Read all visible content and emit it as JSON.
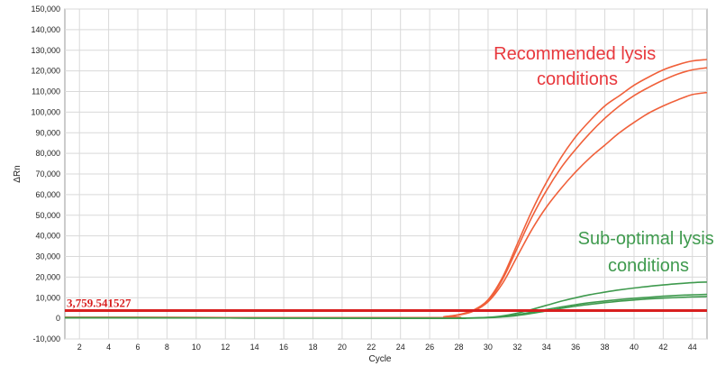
{
  "chart_data": {
    "type": "line",
    "xlabel": "Cycle",
    "ylabel": "ΔRn",
    "xlim": [
      1,
      45
    ],
    "ylim": [
      -10000,
      150000
    ],
    "x_ticks": [
      2,
      4,
      6,
      8,
      10,
      12,
      14,
      16,
      18,
      20,
      22,
      24,
      26,
      28,
      30,
      32,
      34,
      36,
      38,
      40,
      42,
      44
    ],
    "y_ticks": [
      -10000,
      0,
      10000,
      20000,
      30000,
      40000,
      50000,
      60000,
      70000,
      80000,
      90000,
      100000,
      110000,
      120000,
      130000,
      140000,
      150000
    ],
    "y_tick_labels": [
      "-10,000",
      "0",
      "10,000",
      "20,000",
      "30,000",
      "40,000",
      "50,000",
      "60,000",
      "70,000",
      "80,000",
      "90,000",
      "100,000",
      "110,000",
      "120,000",
      "130,000",
      "140,000",
      "150,000"
    ],
    "grid": true,
    "threshold": {
      "value": 3759.541527,
      "label": "3,759.541527",
      "color": "#d81f1f"
    },
    "colors": {
      "recommended": "#f0603a",
      "suboptimal": "#3f9a4e",
      "annot_red": "#e8383d",
      "annot_green": "#3f9a4e"
    },
    "series": [
      {
        "group": "recommended",
        "x": [
          1,
          26,
          27,
          28,
          29,
          30,
          31,
          32,
          33,
          34,
          35,
          36,
          37,
          38,
          39,
          40,
          41,
          42,
          43,
          44,
          45
        ],
        "y": [
          500,
          300,
          800,
          1800,
          4000,
          9000,
          20000,
          36000,
          52000,
          66000,
          78000,
          88000,
          96000,
          103000,
          108000,
          113000,
          117000,
          120500,
          123000,
          124800,
          125500
        ]
      },
      {
        "group": "recommended",
        "x": [
          1,
          26,
          27,
          28,
          29,
          30,
          31,
          32,
          33,
          34,
          35,
          36,
          37,
          38,
          39,
          40,
          41,
          42,
          43,
          44,
          45
        ],
        "y": [
          500,
          300,
          800,
          1700,
          3800,
          8500,
          19000,
          34000,
          49000,
          62000,
          73000,
          82000,
          90000,
          97000,
          103000,
          108000,
          112000,
          115500,
          118500,
          120500,
          121500
        ]
      },
      {
        "group": "recommended",
        "x": [
          1,
          26,
          27,
          28,
          29,
          30,
          31,
          32,
          33,
          34,
          35,
          36,
          37,
          38,
          39,
          40,
          41,
          42,
          43,
          44,
          45
        ],
        "y": [
          500,
          300,
          700,
          1600,
          3500,
          8000,
          17000,
          30000,
          43000,
          54000,
          63000,
          71000,
          78000,
          84000,
          90000,
          95000,
          99500,
          103000,
          106000,
          108500,
          109500
        ]
      },
      {
        "group": "suboptimal",
        "x": [
          1,
          26,
          28,
          30,
          31,
          32,
          33,
          34,
          35,
          36,
          37,
          38,
          39,
          40,
          41,
          42,
          43,
          44,
          45
        ],
        "y": [
          300,
          0,
          100,
          500,
          1200,
          2500,
          4300,
          6300,
          8300,
          10000,
          11500,
          12700,
          13800,
          14700,
          15500,
          16200,
          16800,
          17300,
          17600
        ]
      },
      {
        "group": "suboptimal",
        "x": [
          1,
          26,
          28,
          30,
          31,
          32,
          33,
          34,
          35,
          36,
          37,
          38,
          39,
          40,
          41,
          42,
          43,
          44,
          45
        ],
        "y": [
          300,
          0,
          80,
          400,
          900,
          1800,
          3000,
          4300,
          5500,
          6600,
          7600,
          8400,
          9100,
          9700,
          10200,
          10700,
          11100,
          11400,
          11600
        ]
      },
      {
        "group": "suboptimal",
        "x": [
          1,
          26,
          28,
          30,
          31,
          32,
          33,
          34,
          35,
          36,
          37,
          38,
          39,
          40,
          41,
          42,
          43,
          44,
          45
        ],
        "y": [
          300,
          0,
          60,
          300,
          700,
          1400,
          2400,
          3600,
          4800,
          5900,
          6800,
          7600,
          8300,
          8900,
          9400,
          9800,
          10100,
          10400,
          10600
        ]
      }
    ],
    "annotations": [
      {
        "lines": [
          "Recommended lysis",
          "conditions"
        ],
        "color_key": "annot_red"
      },
      {
        "lines": [
          "Sub-optimal lysis",
          "conditions"
        ],
        "color_key": "annot_green"
      }
    ]
  }
}
